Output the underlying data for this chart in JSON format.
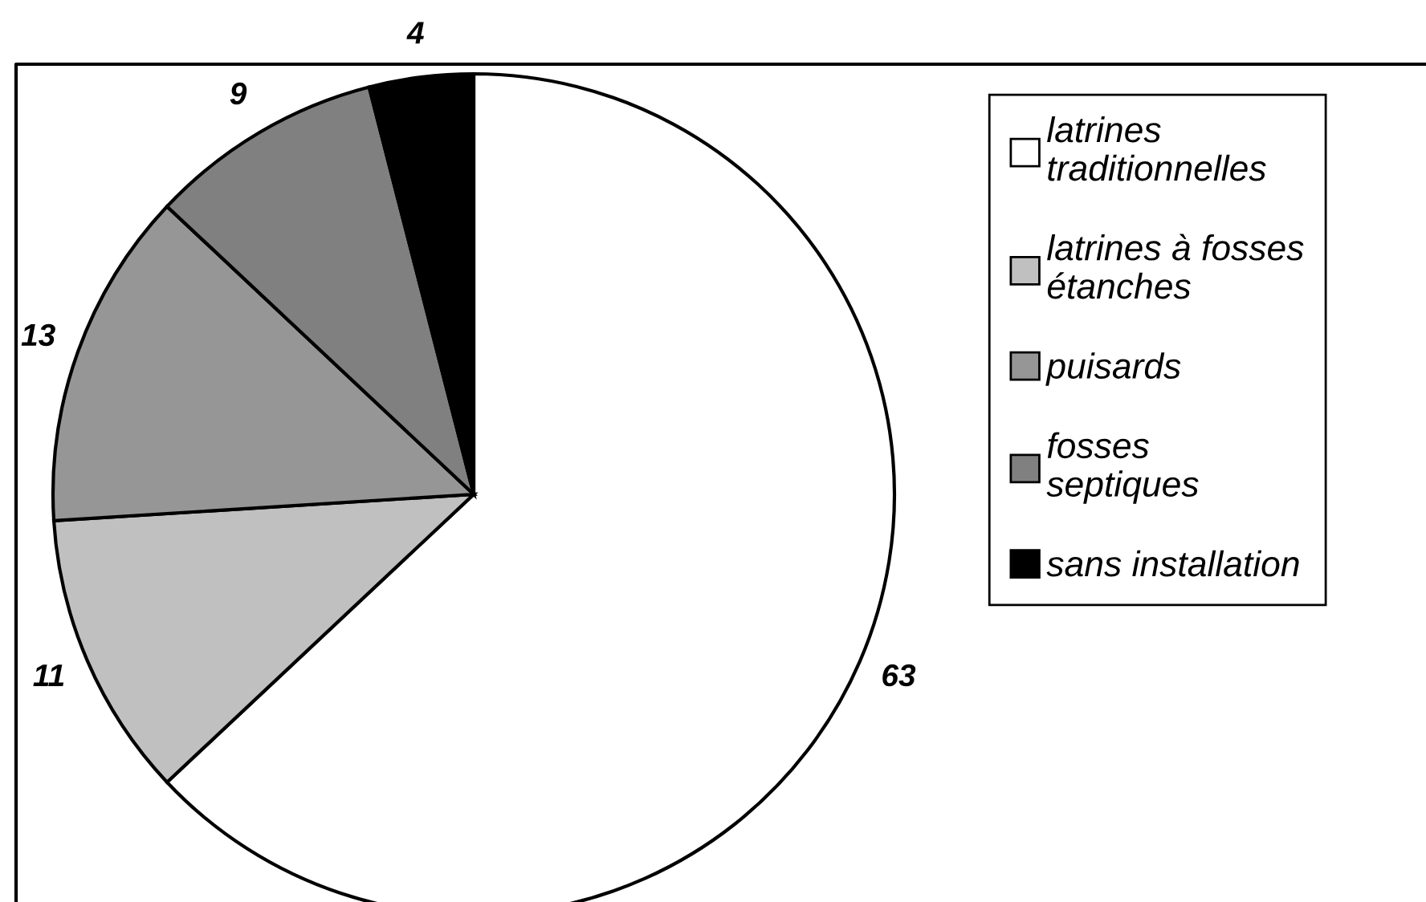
{
  "chart_data": {
    "type": "pie",
    "categories": [
      "latrines\ntraditionnelles",
      "latrines à fosses\nétanches",
      "puisards",
      "fosses\nseptiques",
      "sans installation"
    ],
    "values": [
      63,
      11,
      13,
      9,
      4
    ],
    "colors": [
      "#ffffff",
      "#c0c0c0",
      "#969696",
      "#808080",
      "#000000"
    ],
    "data_labels": true,
    "legend": "right"
  }
}
